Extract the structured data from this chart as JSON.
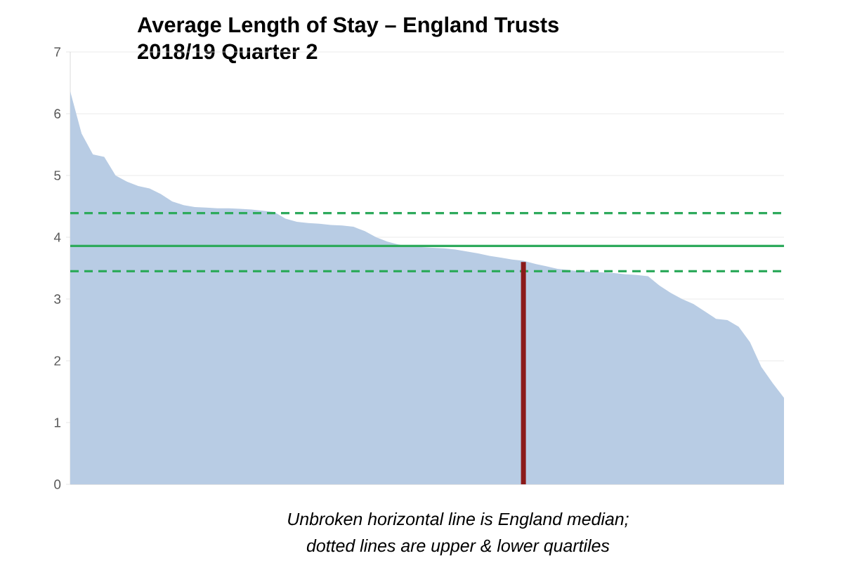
{
  "chart_data": {
    "type": "area",
    "title": "Average Length of Stay – England Trusts",
    "subtitle": "2018/19 Quarter 2",
    "categories": [
      null,
      null,
      null,
      null,
      null,
      null,
      null,
      null,
      null,
      null,
      null,
      null,
      null,
      null,
      null,
      null,
      null,
      null,
      null,
      null,
      null,
      null,
      null,
      null,
      null,
      null,
      null,
      null,
      null,
      null,
      null,
      null,
      null,
      null,
      null,
      null,
      null,
      null,
      null,
      null,
      null,
      null,
      null,
      null,
      null,
      null,
      null,
      null,
      null,
      null,
      null,
      null,
      null,
      null,
      null,
      null,
      null,
      null,
      null,
      null,
      null,
      null,
      null,
      null
    ],
    "series": [
      {
        "color": "#b8cce4",
        "values": [
          6.36,
          5.68,
          5.34,
          5.3,
          5.0,
          4.9,
          4.83,
          4.79,
          4.7,
          4.58,
          4.52,
          4.49,
          4.48,
          4.47,
          4.47,
          4.46,
          4.45,
          4.43,
          4.41,
          4.3,
          4.25,
          4.23,
          4.22,
          4.2,
          4.19,
          4.17,
          4.1,
          4.0,
          3.93,
          3.88,
          3.85,
          3.84,
          3.83,
          3.82,
          3.8,
          3.77,
          3.74,
          3.7,
          3.67,
          3.64,
          3.62,
          3.57,
          3.53,
          3.49,
          3.47,
          3.45,
          3.44,
          3.43,
          3.42,
          3.4,
          3.39,
          3.37,
          3.22,
          3.1,
          3.0,
          2.92,
          2.8,
          2.68,
          2.66,
          2.55,
          2.3,
          1.9,
          1.64,
          1.4
        ]
      },
      {
        "type": "bar",
        "color": "#8b1a1a",
        "values": [
          null,
          null,
          null,
          null,
          null,
          null,
          null,
          null,
          null,
          null,
          null,
          null,
          null,
          null,
          null,
          null,
          null,
          null,
          null,
          null,
          null,
          null,
          null,
          null,
          null,
          null,
          null,
          null,
          null,
          null,
          null,
          null,
          null,
          null,
          null,
          null,
          null,
          null,
          null,
          null,
          3.6,
          null,
          null,
          null,
          null,
          null,
          null,
          null,
          null,
          null,
          null,
          null,
          null,
          null,
          null,
          null,
          null,
          null,
          null,
          null,
          null,
          null,
          null,
          null
        ]
      }
    ],
    "ylim": [
      0,
      7
    ],
    "yticks": [
      0,
      1,
      2,
      3,
      4,
      5,
      6,
      7
    ],
    "grid": "y",
    "tick_labels": "y",
    "ref_lines": [
      {
        "axis": "y",
        "value": 3.86,
        "color": "#2eaa5c",
        "line_style": "solid"
      },
      {
        "axis": "y",
        "value": 4.39,
        "color": "#2eaa5c",
        "line_style": "dashed"
      },
      {
        "axis": "y",
        "value": 3.45,
        "color": "#2eaa5c",
        "line_style": "dashed"
      }
    ],
    "annotations": [
      "Unbroken horizontal line is England median;",
      "dotted lines are upper & lower quartiles"
    ]
  }
}
